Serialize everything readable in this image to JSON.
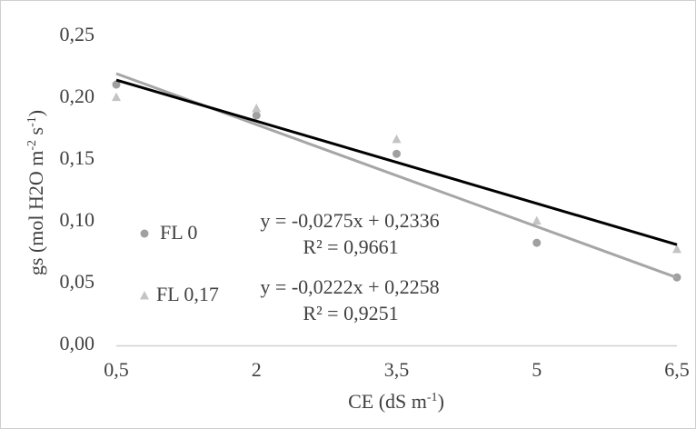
{
  "chart_data": {
    "type": "scatter",
    "x": [
      0.5,
      2,
      3.5,
      5,
      6.5
    ],
    "x_tick_labels": [
      "0,5",
      "2",
      "3,5",
      "5",
      "6,5"
    ],
    "y_ticks": [
      0,
      0.05,
      0.1,
      0.15,
      0.2,
      0.25
    ],
    "y_tick_labels": [
      "0,00",
      "0,05",
      "0,10",
      "0,15",
      "0,20",
      "0,25"
    ],
    "xlim": [
      0.5,
      6.5
    ],
    "ylim": [
      0,
      0.25
    ],
    "grid": false,
    "legend_position": "inside-left",
    "xlabel": {
      "text": "CE (dS m",
      "sup": "-1",
      "tail": ")"
    },
    "ylabel": {
      "text": "gs (mol H2O m",
      "sup1": "-2",
      "mid": " s",
      "sup2": "-1",
      "tail": ")"
    },
    "series": [
      {
        "name": "FL 0",
        "marker": "circle",
        "color": "#A0A0A0",
        "values": [
          0.211,
          0.186,
          0.155,
          0.083,
          0.055
        ],
        "trendline": {
          "slope": -0.0275,
          "intercept": 0.2336,
          "equation": "y = -0,0275x + 0,2336",
          "r2": "R² = 0,9661",
          "color": "#A6A6A6"
        }
      },
      {
        "name": "FL 0,17",
        "marker": "triangle",
        "color": "#C4C4C4",
        "values": [
          0.201,
          0.192,
          0.167,
          0.101,
          0.078
        ],
        "trendline": {
          "slope": -0.0222,
          "intercept": 0.2258,
          "equation": "y = -0,0222x + 0,2258",
          "r2": "R² = 0,9251",
          "color": "#000000"
        }
      }
    ]
  }
}
